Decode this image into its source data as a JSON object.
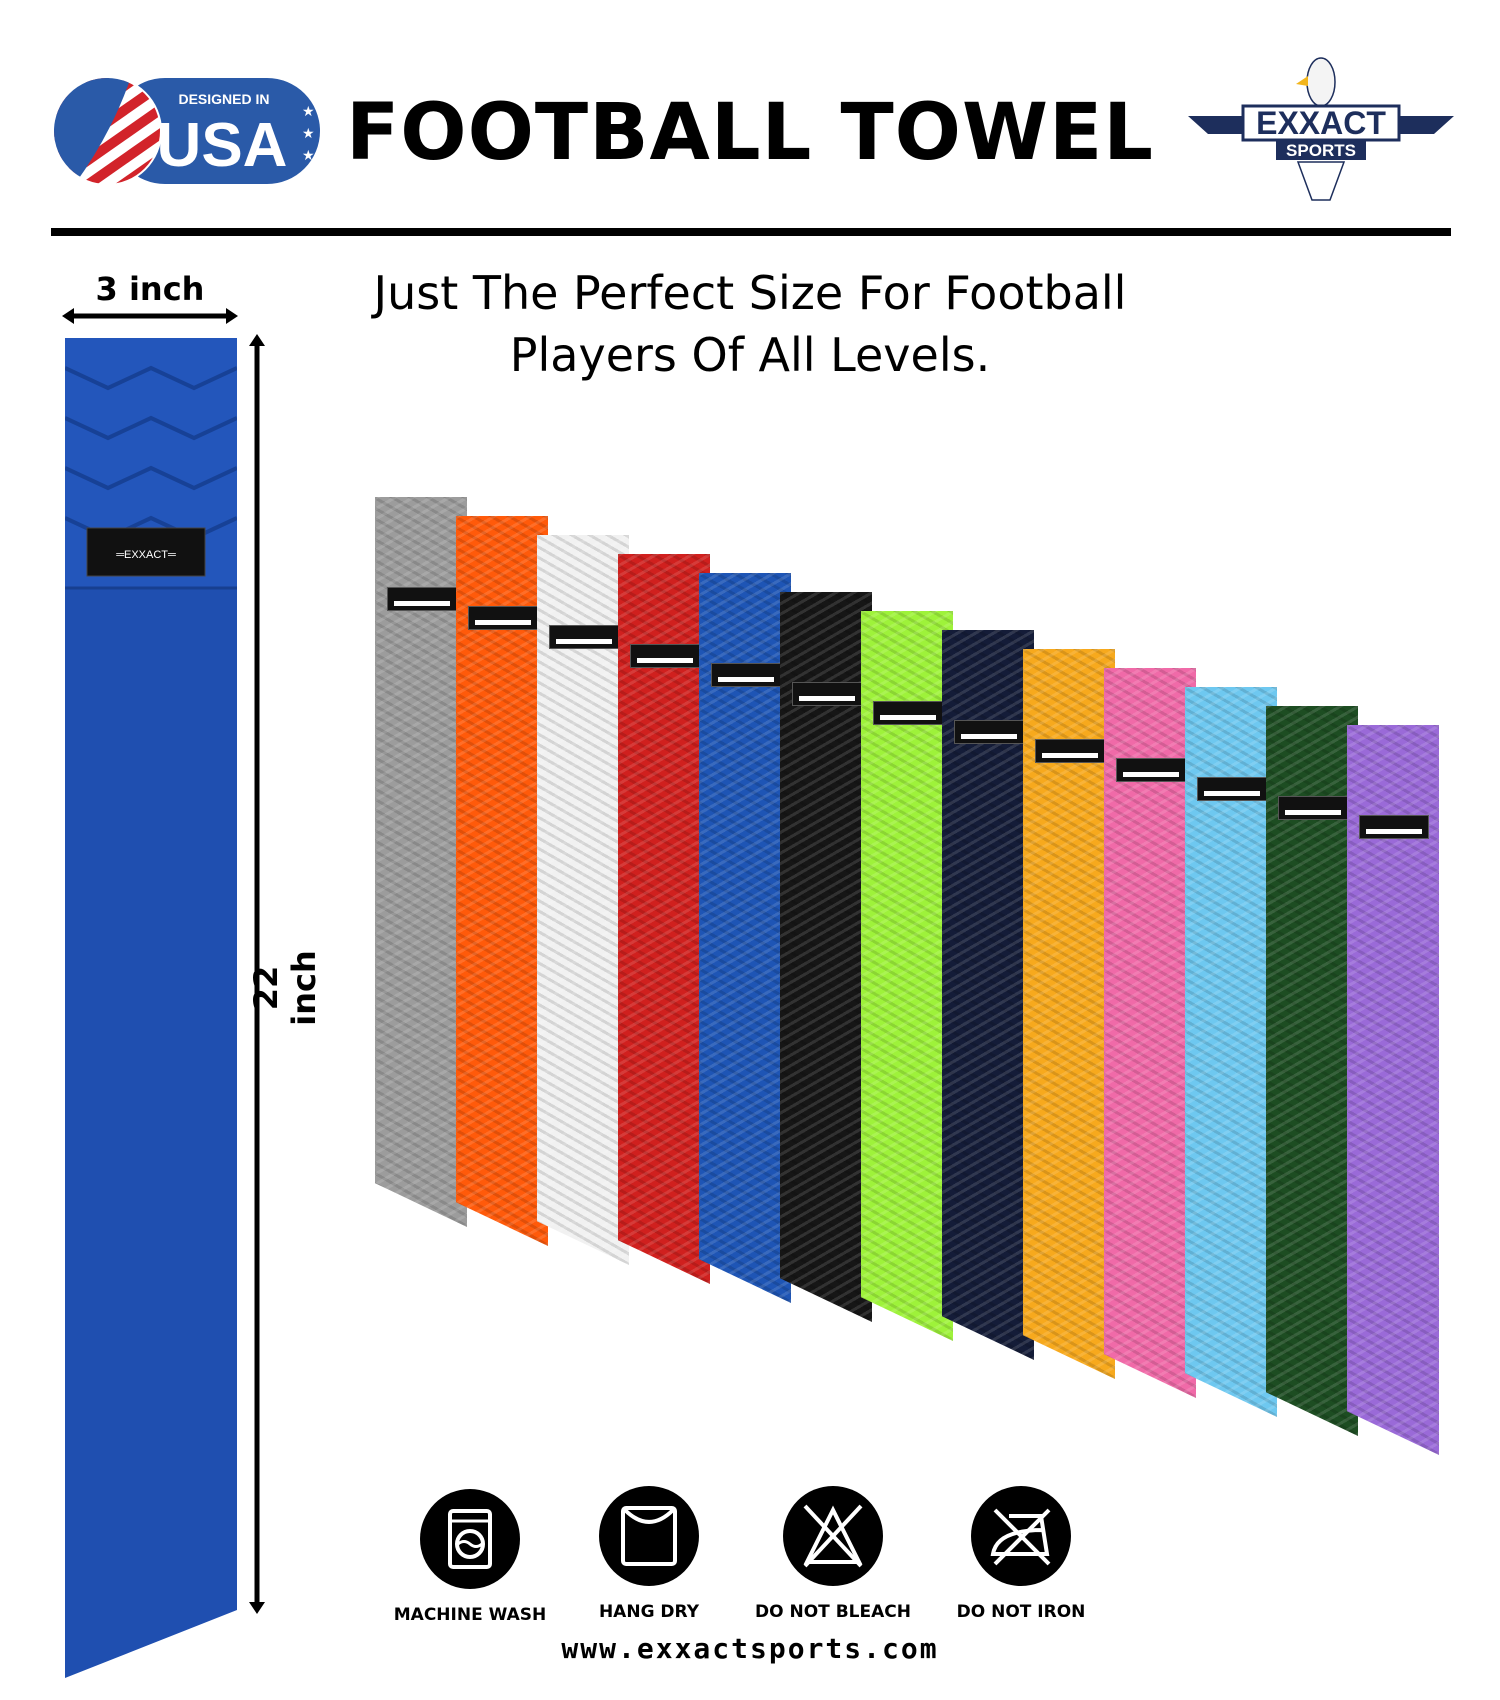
{
  "badge": {
    "line1": "DESIGNED IN",
    "line2": "USA"
  },
  "title": "FOOTBALL TOWEL",
  "logo": {
    "brand": "EXXACT",
    "sub": "SPORTS"
  },
  "dimensions": {
    "width": "3 inch",
    "height": "22 inch"
  },
  "subtitle": {
    "line1": "Just The Perfect Size For Football",
    "line2": "Players Of All Levels."
  },
  "towel_colors": [
    "#9c9c9c",
    "#ff5a0a",
    "#f1f1f1",
    "#d0201e",
    "#1e55b5",
    "#161616",
    "#9ef23a",
    "#141c38",
    "#f7a91d",
    "#f06aa8",
    "#6ec8f0",
    "#1d4d22",
    "#9a6ad8"
  ],
  "main_towel_color": "#1f4fb0",
  "care": [
    {
      "icon": "machine-wash-icon",
      "label": "MACHINE WASH"
    },
    {
      "icon": "hang-dry-icon",
      "label": "HANG DRY"
    },
    {
      "icon": "do-not-bleach-icon",
      "label": "DO NOT BLEACH"
    },
    {
      "icon": "do-not-iron-icon",
      "label": "DO NOT IRON"
    }
  ],
  "website": "www.exxactsports.com"
}
